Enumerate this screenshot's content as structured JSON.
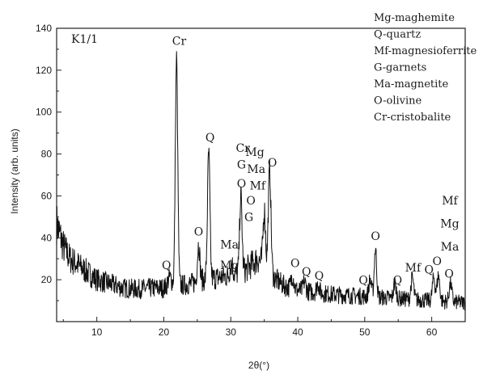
{
  "chart_data": {
    "type": "line",
    "xlabel": "2θ(°)",
    "ylabel": "Intensity (arb. units)",
    "xlim": [
      4,
      65
    ],
    "ylim": [
      0,
      140
    ],
    "x_ticks": [
      10,
      20,
      30,
      40,
      50,
      60
    ],
    "y_ticks": [
      20,
      40,
      60,
      80,
      100,
      120,
      140
    ],
    "sample_label": "K1/1",
    "legend": [
      "Mg-maghemite",
      "Q-quartz",
      "Mf-magnesioferrite",
      "G-garnets",
      "Ma-magnetite",
      "O-olivine",
      "Cr-cristobalite"
    ],
    "background": [
      [
        4,
        47
      ],
      [
        5,
        36
      ],
      [
        6,
        30
      ],
      [
        8,
        25
      ],
      [
        10,
        20
      ],
      [
        12,
        18
      ],
      [
        14,
        16
      ],
      [
        16,
        15.5
      ],
      [
        18,
        16
      ],
      [
        20,
        16
      ],
      [
        22,
        17
      ],
      [
        24,
        18
      ],
      [
        26,
        20
      ],
      [
        28,
        21
      ],
      [
        30,
        22
      ],
      [
        32,
        24
      ],
      [
        33,
        27
      ],
      [
        34,
        30
      ],
      [
        35,
        27
      ],
      [
        36,
        22
      ],
      [
        38,
        17
      ],
      [
        40,
        15
      ],
      [
        45,
        13
      ],
      [
        50,
        12
      ],
      [
        55,
        11
      ],
      [
        60,
        10
      ],
      [
        65,
        9
      ]
    ],
    "peaks": [
      {
        "x": 20.9,
        "y": 21,
        "width": 0.3
      },
      {
        "x": 21.9,
        "y": 126,
        "width": 0.18
      },
      {
        "x": 25.2,
        "y": 37,
        "width": 0.18
      },
      {
        "x": 26.7,
        "y": 81,
        "width": 0.18
      },
      {
        "x": 30.1,
        "y": 28,
        "width": 0.2
      },
      {
        "x": 31.5,
        "y": 60,
        "width": 0.18
      },
      {
        "x": 35.0,
        "y": 53,
        "width": 0.18
      },
      {
        "x": 35.8,
        "y": 72,
        "width": 0.2
      },
      {
        "x": 39.2,
        "y": 22,
        "width": 0.2
      },
      {
        "x": 41.0,
        "y": 19,
        "width": 0.2
      },
      {
        "x": 43.0,
        "y": 18,
        "width": 0.2
      },
      {
        "x": 50.8,
        "y": 20,
        "width": 0.2
      },
      {
        "x": 51.6,
        "y": 35,
        "width": 0.18
      },
      {
        "x": 54.5,
        "y": 18,
        "width": 0.2
      },
      {
        "x": 57.1,
        "y": 21,
        "width": 0.2
      },
      {
        "x": 60.3,
        "y": 21,
        "width": 0.2
      },
      {
        "x": 61.0,
        "y": 22,
        "width": 0.2
      },
      {
        "x": 62.8,
        "y": 18,
        "width": 0.2
      }
    ],
    "peak_labels": [
      {
        "text": "Cr",
        "x": 22.3,
        "y": 132
      },
      {
        "text": "Q",
        "x": 26.9,
        "y": 86
      },
      {
        "text": "Q",
        "x": 20.4,
        "y": 25
      },
      {
        "text": "O",
        "x": 25.2,
        "y": 41
      },
      {
        "text": "Ma",
        "x": 29.8,
        "y": 35
      },
      {
        "text": "Mg",
        "x": 29.8,
        "y": 25
      },
      {
        "text": "Cr",
        "x": 31.8,
        "y": 81
      },
      {
        "text": "G",
        "x": 31.6,
        "y": 73
      },
      {
        "text": "O",
        "x": 31.6,
        "y": 64
      },
      {
        "text": "Mg",
        "x": 33.6,
        "y": 79
      },
      {
        "text": "Ma",
        "x": 33.8,
        "y": 71
      },
      {
        "text": "Mf",
        "x": 34.0,
        "y": 63
      },
      {
        "text": "O",
        "x": 33.0,
        "y": 56
      },
      {
        "text": "G",
        "x": 32.7,
        "y": 48
      },
      {
        "text": "O",
        "x": 36.2,
        "y": 74
      },
      {
        "text": "O",
        "x": 39.6,
        "y": 26
      },
      {
        "text": "Q",
        "x": 41.3,
        "y": 22
      },
      {
        "text": "Q",
        "x": 43.2,
        "y": 20
      },
      {
        "text": "Q",
        "x": 49.8,
        "y": 18
      },
      {
        "text": "O",
        "x": 51.6,
        "y": 39
      },
      {
        "text": "Q",
        "x": 54.9,
        "y": 18
      },
      {
        "text": "Mf",
        "x": 57.2,
        "y": 24
      },
      {
        "text": "Q",
        "x": 59.6,
        "y": 23
      },
      {
        "text": "O",
        "x": 60.8,
        "y": 27
      },
      {
        "text": "O",
        "x": 62.6,
        "y": 21
      },
      {
        "text": "Mf",
        "x": 62.7,
        "y": 56
      },
      {
        "text": "Mg",
        "x": 62.7,
        "y": 45
      },
      {
        "text": "Ma",
        "x": 62.7,
        "y": 34
      }
    ],
    "grid": false,
    "legend_position": "top-right",
    "series_color": "#111111"
  }
}
